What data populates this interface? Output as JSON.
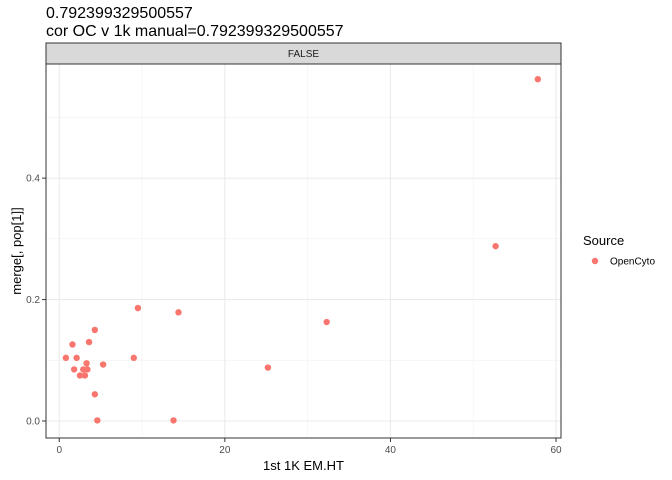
{
  "chart_data": {
    "type": "scatter",
    "title": "0.792399329500557",
    "subtitle": "cor OC v 1k manual=0.792399329500557",
    "facet_label": "FALSE",
    "xlabel": "1st 1K EM.HT",
    "ylabel": "merge[, pop[1]]",
    "xlim": [
      -1.6,
      60.6
    ],
    "ylim": [
      -0.028,
      0.588
    ],
    "x_ticks": [
      0,
      20,
      40,
      60
    ],
    "x_tick_labels": [
      "0",
      "20",
      "40",
      "60"
    ],
    "y_ticks": [
      0.0,
      0.2,
      0.4
    ],
    "y_tick_labels": [
      "0.0",
      "0.2",
      "0.4"
    ],
    "grid": true,
    "point_color": "#F8766D",
    "legend": {
      "title": "Source",
      "entries": [
        "OpenCyto"
      ],
      "position": "right"
    },
    "series": [
      {
        "name": "OpenCyto",
        "points": [
          {
            "x": 0.8,
            "y": 0.104
          },
          {
            "x": 1.6,
            "y": 0.126
          },
          {
            "x": 1.8,
            "y": 0.085
          },
          {
            "x": 2.1,
            "y": 0.104
          },
          {
            "x": 2.5,
            "y": 0.075
          },
          {
            "x": 2.9,
            "y": 0.085
          },
          {
            "x": 3.1,
            "y": 0.075
          },
          {
            "x": 3.3,
            "y": 0.095
          },
          {
            "x": 3.6,
            "y": 0.13
          },
          {
            "x": 3.4,
            "y": 0.085
          },
          {
            "x": 4.3,
            "y": 0.15
          },
          {
            "x": 4.3,
            "y": 0.044
          },
          {
            "x": 4.6,
            "y": 0.001
          },
          {
            "x": 5.3,
            "y": 0.093
          },
          {
            "x": 9.0,
            "y": 0.104
          },
          {
            "x": 9.5,
            "y": 0.186
          },
          {
            "x": 13.8,
            "y": 0.001
          },
          {
            "x": 14.4,
            "y": 0.179
          },
          {
            "x": 25.2,
            "y": 0.088
          },
          {
            "x": 32.3,
            "y": 0.163
          },
          {
            "x": 52.7,
            "y": 0.288
          },
          {
            "x": 57.8,
            "y": 0.563
          }
        ]
      }
    ]
  }
}
